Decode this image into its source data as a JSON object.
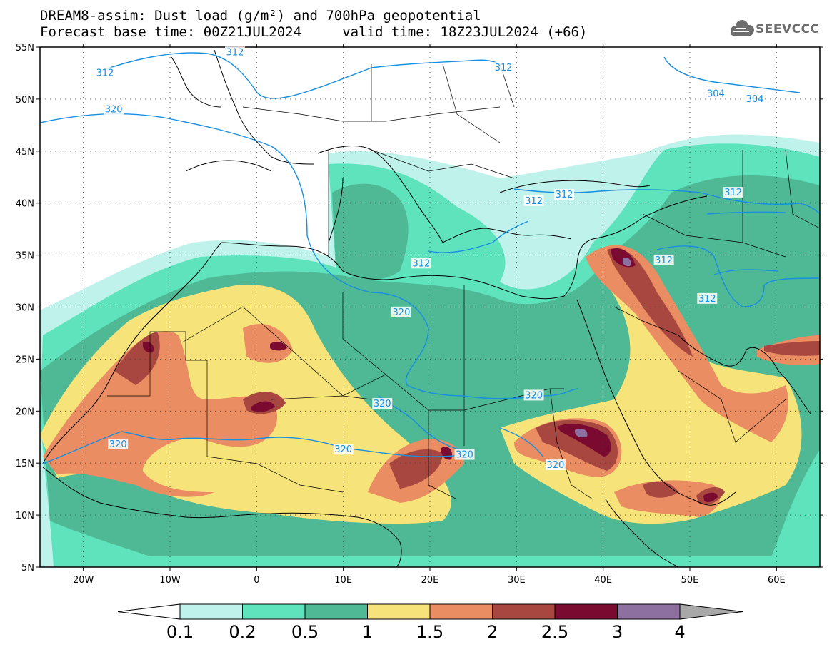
{
  "title": {
    "line1": "DREAM8-assim: Dust load (g/m²) and 700hPa geopotential",
    "line2": "Forecast base time: 00Z21JUL2024     valid time: 18Z23JUL2024 (+66)"
  },
  "logo": {
    "text": "SEEVCCC",
    "icon": "cloud-icon"
  },
  "axes": {
    "lat_labels": [
      "55N",
      "50N",
      "45N",
      "40N",
      "35N",
      "30N",
      "25N",
      "20N",
      "15N",
      "10N",
      "5N"
    ],
    "lat_values": [
      55,
      50,
      45,
      40,
      35,
      30,
      25,
      20,
      15,
      10,
      5
    ],
    "lon_labels": [
      "20W",
      "10W",
      "0",
      "10E",
      "20E",
      "30E",
      "40E",
      "50E",
      "60E"
    ],
    "lon_values": [
      -20,
      -10,
      0,
      10,
      20,
      30,
      40,
      50,
      60
    ],
    "lon_range": [
      -25,
      65
    ],
    "lat_range": [
      5,
      55
    ],
    "grid": "dotted"
  },
  "colorbar": {
    "labels": [
      "0.1",
      "0.2",
      "0.5",
      "1",
      "1.5",
      "2",
      "2.5",
      "3",
      "4"
    ],
    "colors": [
      "#ffffff",
      "#bff2ea",
      "#5ee3bd",
      "#4fb894",
      "#f6e37a",
      "#ea8d62",
      "#a74740",
      "#7a0a2f",
      "#8d6fa0",
      "#a8a8a8"
    ]
  },
  "contours": {
    "color": "#1a8fe0",
    "labels": [
      {
        "text": "312",
        "lon": -17.5,
        "lat": 52.5
      },
      {
        "text": "312",
        "lon": -2.5,
        "lat": 54.5
      },
      {
        "text": "312",
        "lon": 28.5,
        "lat": 53
      },
      {
        "text": "304",
        "lon": 53,
        "lat": 50.5
      },
      {
        "text": "304",
        "lon": 57.5,
        "lat": 50
      },
      {
        "text": "320",
        "lon": -16.5,
        "lat": 49
      },
      {
        "text": "312",
        "lon": 32,
        "lat": 40.2
      },
      {
        "text": "312",
        "lon": 35.5,
        "lat": 40.8
      },
      {
        "text": "312",
        "lon": 55,
        "lat": 41
      },
      {
        "text": "312",
        "lon": 47,
        "lat": 34.5
      },
      {
        "text": "312",
        "lon": 19,
        "lat": 34.2
      },
      {
        "text": "312",
        "lon": 52,
        "lat": 30.8
      },
      {
        "text": "320",
        "lon": 16.7,
        "lat": 29.5
      },
      {
        "text": "320",
        "lon": 14.5,
        "lat": 20.7
      },
      {
        "text": "320",
        "lon": 32,
        "lat": 21.5
      },
      {
        "text": "320",
        "lon": -16,
        "lat": 16.8
      },
      {
        "text": "320",
        "lon": 10,
        "lat": 16.3
      },
      {
        "text": "320",
        "lon": 24,
        "lat": 15.8
      },
      {
        "text": "320",
        "lon": 34.5,
        "lat": 14.8
      }
    ]
  }
}
